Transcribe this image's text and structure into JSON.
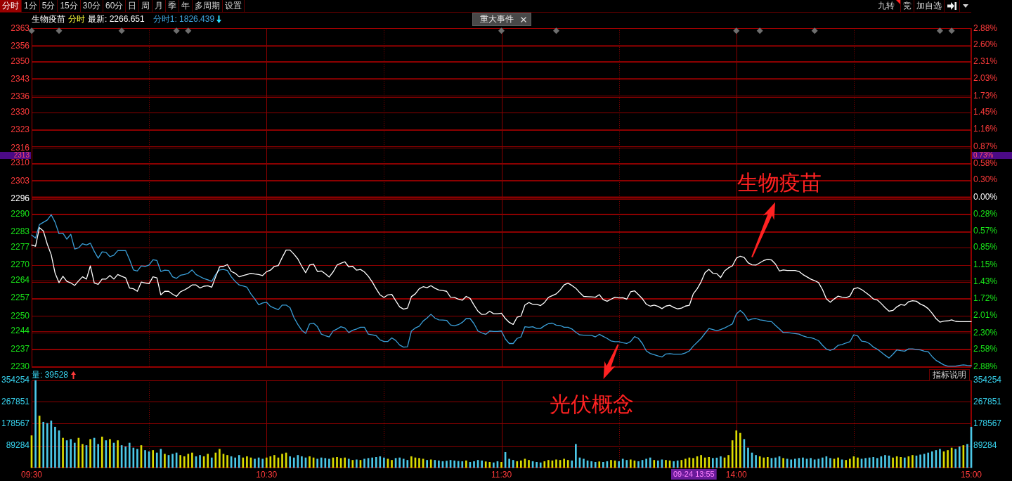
{
  "chart_data": [
    {
      "type": "other",
      "annotations": [
        "分时",
        "1分",
        "5分",
        "15分",
        "30分",
        "60分",
        "日",
        "周",
        "月",
        "季",
        "年",
        "多周期",
        "设置"
      ]
    },
    {
      "type": "other",
      "annotations": [
        "九转",
        "竞",
        "加自选"
      ]
    },
    {
      "type": "line",
      "annotations": [
        "生物疫苗",
        "分时",
        "最新: 2266.651",
        "分时1: 1826.439",
        "重大事件",
        "2313",
        "0.73%"
      ],
      "categories": [
        null,
        null,
        null,
        null,
        null,
        null,
        null,
        null,
        null,
        null,
        null,
        null,
        null,
        null,
        null,
        null,
        null,
        null,
        null,
        null,
        null,
        null,
        null,
        null,
        null,
        null,
        null,
        null,
        null,
        null,
        null,
        null,
        null,
        null,
        null,
        null,
        null,
        null,
        null,
        null,
        null,
        null,
        null,
        null,
        null,
        null,
        null,
        null,
        null,
        null,
        null,
        null,
        null,
        null,
        null,
        null,
        null,
        null,
        null,
        null,
        null,
        null,
        null,
        null,
        null,
        null,
        null,
        null,
        null,
        null,
        null,
        null,
        null,
        null,
        null,
        null,
        null,
        null,
        null,
        null,
        null,
        null,
        null,
        null,
        null,
        null,
        null,
        null,
        null,
        null,
        null,
        null,
        null,
        null,
        null,
        null,
        null,
        null,
        null,
        null,
        null,
        null,
        null,
        null,
        null,
        null,
        null,
        null,
        null,
        null,
        null,
        null,
        null,
        null,
        null,
        null,
        null,
        null,
        null,
        null,
        null,
        null,
        null,
        null,
        null,
        null,
        null,
        null,
        null,
        null,
        null,
        null,
        null,
        null,
        null,
        null,
        null,
        null,
        null,
        null,
        null,
        null,
        null,
        null,
        null,
        null,
        null,
        null,
        null,
        null,
        null,
        null,
        null,
        null,
        null,
        null,
        null,
        null,
        null,
        null,
        null,
        null,
        null,
        null,
        null,
        null,
        null,
        null,
        null,
        null,
        null,
        null,
        null,
        null,
        null,
        null,
        null,
        null,
        null,
        null,
        null,
        null,
        null,
        null,
        null,
        null,
        null,
        null,
        null,
        null,
        null,
        null,
        null,
        null,
        null,
        null,
        null,
        null,
        null,
        null,
        null,
        null,
        null,
        null,
        null,
        null,
        null,
        null,
        null,
        null,
        null,
        null,
        null,
        null,
        null,
        null,
        null,
        null,
        null,
        null,
        null,
        null,
        null,
        null,
        null,
        null,
        null,
        null,
        null,
        null,
        null,
        null,
        null,
        null,
        null,
        null,
        null,
        null,
        null,
        null,
        null
      ],
      "ylim": [
        2230,
        2363
      ],
      "yticks": [
        2230,
        2237,
        2244,
        2250,
        2257,
        2264,
        2270,
        2277,
        2283,
        2290,
        2296,
        2303,
        2310,
        2316,
        2323,
        2330,
        2336,
        2343,
        2350,
        2356,
        2363
      ],
      "y2lim": [
        -2.88,
        2.88
      ],
      "y2ticks": [
        {
          "value": -2.88,
          "label": "2.88%"
        },
        {
          "value": -2.58,
          "label": "2.58%"
        },
        {
          "value": -2.3,
          "label": "2.30%"
        },
        {
          "value": -2.01,
          "label": "2.01%"
        },
        {
          "value": -1.72,
          "label": "1.72%"
        },
        {
          "value": -1.43,
          "label": "1.43%"
        },
        {
          "value": -1.15,
          "label": "1.15%"
        },
        {
          "value": -0.85,
          "label": "0.85%"
        },
        {
          "value": -0.57,
          "label": "0.57%"
        },
        {
          "value": -0.28,
          "label": "0.28%"
        },
        {
          "value": 0,
          "label": "0.00%"
        },
        {
          "value": 0.3,
          "label": "0.30%"
        },
        {
          "value": 0.58,
          "label": "0.58%"
        },
        {
          "value": 0.87,
          "label": "0.87%"
        },
        {
          "value": 1.16,
          "label": "1.16%"
        },
        {
          "value": 1.45,
          "label": "1.45%"
        },
        {
          "value": 1.73,
          "label": "1.73%"
        },
        {
          "value": 2.03,
          "label": "2.03%"
        },
        {
          "value": 2.31,
          "label": "2.31%"
        },
        {
          "value": 2.6,
          "label": "2.60%"
        },
        {
          "value": 2.88,
          "label": "2.88%"
        }
      ],
      "grid": true,
      "ref_lines": [
        {
          "axis": "y2",
          "value": 0,
          "color": "#8b0000"
        }
      ],
      "series": [
        {
          "name": "生物疫苗",
          "color": "#ffffff",
          "values": [
            2277.9,
            2277.4,
            2284.7,
            2283.4,
            2278.2,
            2274.1,
            2266.8,
            2263.1,
            2265.6,
            2263.6,
            2263.0,
            2262.0,
            2263.8,
            2265.4,
            2264.5,
            2269.7,
            2263.0,
            2262.4,
            2264.5,
            2264.5,
            2265.9,
            2264.5,
            2266.3,
            2265.6,
            2265.0,
            2261.0,
            2260.7,
            2259.7,
            2263.3,
            2263.0,
            2262.7,
            2265.4,
            2265.0,
            2258.3,
            2259.7,
            2259.7,
            2258.6,
            2257.7,
            2259.5,
            2260.2,
            2261.1,
            2262.2,
            2262.2,
            2261.0,
            2261.7,
            2261.9,
            2261.3,
            2265.4,
            2269.3,
            2269.5,
            2270.2,
            2267.5,
            2266.8,
            2265.4,
            2265.9,
            2266.3,
            2266.8,
            2266.5,
            2266.3,
            2265.9,
            2267.4,
            2268.0,
            2269.5,
            2269.8,
            2273.0,
            2275.9,
            2275.9,
            2274.3,
            2272.4,
            2269.5,
            2267.0,
            2270.0,
            2270.4,
            2267.5,
            2267.7,
            2266.6,
            2265.3,
            2267.3,
            2270.0,
            2270.7,
            2271.3,
            2269.3,
            2269.5,
            2268.0,
            2268.3,
            2267.3,
            2265.6,
            2263.4,
            2260.7,
            2258.3,
            2257.3,
            2258.3,
            2258.5,
            2256.0,
            2253.6,
            2252.7,
            2253.1,
            2257.6,
            2258.7,
            2260.7,
            2261.5,
            2261.1,
            2261.9,
            2260.9,
            2260.2,
            2260.0,
            2259.7,
            2257.4,
            2257.3,
            2256.6,
            2256.2,
            2257.7,
            2256.9,
            2254.3,
            2251.9,
            2250.6,
            2250.7,
            2251.9,
            2250.9,
            2250.9,
            2251.1,
            2249.0,
            2247.5,
            2246.7,
            2249.5,
            2250.0,
            2254.3,
            2255.3,
            2254.6,
            2254.6,
            2254.1,
            2255.3,
            2257.3,
            2258.0,
            2258.7,
            2260.2,
            2262.2,
            2262.9,
            2262.0,
            2260.9,
            2259.2,
            2257.7,
            2257.6,
            2257.5,
            2257.4,
            2258.4,
            2256.4,
            2255.8,
            2256.6,
            2257.4,
            2257.1,
            2257.2,
            2256.6,
            2259.5,
            2259.9,
            2258.4,
            2256.8,
            2254.6,
            2253.9,
            2254.3,
            2253.8,
            2252.9,
            2253.9,
            2254.2,
            2253.4,
            2252.8,
            2253.1,
            2253.9,
            2254.2,
            2258.7,
            2260.7,
            2263.4,
            2267.0,
            2268.3,
            2266.8,
            2266.651,
            2265.1,
            2267.7,
            2268.9,
            2269.7,
            2272.7,
            2273.5,
            2273.0,
            2270.9,
            2270.1,
            2270.0,
            2270.9,
            2271.8,
            2272.2,
            2272.0,
            2270.4,
            2267.7,
            2268.1,
            2267.9,
            2267.9,
            2267.9,
            2267.5,
            2266.3,
            2265.4,
            2264.5,
            2263.9,
            2263.1,
            2260.4,
            2256.7,
            2255.4,
            2256.7,
            2257.8,
            2257.4,
            2257.2,
            2257.8,
            2260.7,
            2261.1,
            2260.4,
            2259.3,
            2258.1,
            2256.7,
            2256.3,
            2254.9,
            2253.3,
            2251.9,
            2252.2,
            2253.6,
            2254.5,
            2254.2,
            2255.6,
            2256.0,
            2255.8,
            2254.7,
            2254.0,
            2252.9,
            2251.1,
            2249.0,
            2247.6,
            2248.0,
            2248.1,
            2248.5,
            2247.9,
            2247.8,
            2247.8,
            2247.8,
            2247.8
          ]
        },
        {
          "name": "光伏概念",
          "color": "#3a9fd8",
          "values": [
            2281.8,
            2280.6,
            2285.9,
            2286.8,
            2287.7,
            2289.8,
            2286.8,
            2282.3,
            2282.5,
            2280.2,
            2282.1,
            2276.3,
            2276.8,
            2278.4,
            2277.9,
            2278.6,
            2275.4,
            2272.7,
            2275.2,
            2275.0,
            2273.3,
            2273.9,
            2275.7,
            2275.7,
            2275.7,
            2272.2,
            2268.1,
            2267.7,
            2269.7,
            2269.5,
            2270.0,
            2272.1,
            2271.8,
            2267.5,
            2268.0,
            2267.9,
            2265.4,
            2264.8,
            2266.0,
            2266.3,
            2266.8,
            2268.1,
            2266.3,
            2265.5,
            2264.7,
            2264.2,
            2263.6,
            2266.3,
            2268.1,
            2268.3,
            2267.9,
            2265.4,
            2263.6,
            2262.2,
            2261.8,
            2261.3,
            2258.7,
            2256.7,
            2254.4,
            2255.1,
            2255.4,
            2253.8,
            2253.1,
            2252.5,
            2254.3,
            2254.3,
            2253.3,
            2249.4,
            2246.7,
            2244.4,
            2243.2,
            2246.9,
            2247.2,
            2245.8,
            2242.9,
            2242.3,
            2241.8,
            2244.1,
            2244.9,
            2245.8,
            2245.3,
            2243.5,
            2244.4,
            2244.9,
            2245.6,
            2245.6,
            2242.9,
            2242.6,
            2242.3,
            2240.6,
            2240.0,
            2240.0,
            2241.4,
            2240.4,
            2238.6,
            2237.8,
            2237.9,
            2244.1,
            2245.3,
            2246.0,
            2248.0,
            2249.2,
            2250.7,
            2249.2,
            2248.5,
            2248.4,
            2248.3,
            2246.5,
            2246.2,
            2246.6,
            2247.5,
            2249.0,
            2249.0,
            2247.0,
            2244.1,
            2243.4,
            2242.8,
            2244.1,
            2243.9,
            2243.9,
            2244.1,
            2241.0,
            2239.2,
            2239.2,
            2241.2,
            2241.8,
            2245.8,
            2245.6,
            2245.8,
            2245.1,
            2245.1,
            2246.2,
            2247.0,
            2247.2,
            2246.4,
            2246.3,
            2245.6,
            2245.6,
            2244.9,
            2243.6,
            2242.6,
            2242.5,
            2242.4,
            2242.4,
            2241.8,
            2242.8,
            2242.0,
            2241.2,
            2240.2,
            2239.9,
            2239.9,
            2239.5,
            2239.2,
            2240.0,
            2241.9,
            2241.2,
            2239.2,
            2236.3,
            2235.3,
            2234.8,
            2234.3,
            2233.9,
            2235.1,
            2235.2,
            2235.0,
            2235.0,
            2235.0,
            2235.5,
            2236.3,
            2238.2,
            2239.7,
            2241.2,
            2243.2,
            2245.1,
            2244.7,
            2244.2,
            2244.7,
            2245.3,
            2246.1,
            2246.9,
            2250.8,
            2252.2,
            2250.8,
            2248.3,
            2248.8,
            2249.0,
            2248.5,
            2248.3,
            2247.9,
            2247.8,
            2246.3,
            2244.9,
            2243.5,
            2243.5,
            2243.3,
            2243.1,
            2242.9,
            2242.2,
            2241.7,
            2241.5,
            2241.0,
            2240.3,
            2238.5,
            2237.0,
            2236.5,
            2237.1,
            2238.5,
            2238.8,
            2239.4,
            2239.9,
            2242.6,
            2242.2,
            2240.1,
            2239.9,
            2239.2,
            2237.8,
            2237.0,
            2235.8,
            2234.6,
            2233.5,
            2235.0,
            2236.7,
            2236.4,
            2236.2,
            2237.1,
            2237.1,
            2236.9,
            2236.7,
            2236.2,
            2236.0,
            2234.1,
            2232.6,
            2231.7,
            2230.8,
            2230.3,
            2230.3,
            2230.3,
            2230.6,
            2230.8,
            2230.6,
            2230.5
          ]
        },
        {
          "type": "scatter",
          "marker": "diamond",
          "color": "#6e6e6e",
          "values": [
            2362,
            null,
            null,
            null,
            null,
            null,
            null,
            2362,
            null,
            null,
            null,
            null,
            null,
            null,
            null,
            null,
            null,
            null,
            null,
            null,
            null,
            null,
            null,
            2362,
            null,
            null,
            null,
            null,
            null,
            null,
            null,
            null,
            null,
            null,
            null,
            null,
            null,
            2362,
            null,
            null,
            2362,
            null,
            null,
            null,
            null,
            null,
            null,
            null,
            null,
            null,
            null,
            null,
            null,
            null,
            null,
            null,
            null,
            null,
            null,
            null,
            null,
            null,
            null,
            null,
            null,
            null,
            null,
            null,
            null,
            null,
            null,
            null,
            null,
            null,
            null,
            null,
            null,
            null,
            null,
            null,
            null,
            null,
            null,
            null,
            null,
            null,
            null,
            null,
            null,
            null,
            null,
            null,
            null,
            null,
            null,
            null,
            null,
            null,
            null,
            null,
            null,
            null,
            null,
            null,
            null,
            null,
            null,
            null,
            null,
            null,
            null,
            null,
            null,
            null,
            null,
            null,
            null,
            null,
            null,
            null,
            2362,
            null,
            null,
            null,
            null,
            null,
            null,
            null,
            null,
            null,
            null,
            null,
            null,
            null,
            2362,
            null,
            null,
            null,
            null,
            null,
            null,
            null,
            null,
            null,
            null,
            null,
            null,
            null,
            null,
            null,
            null,
            null,
            null,
            null,
            null,
            null,
            null,
            null,
            null,
            null,
            null,
            null,
            null,
            null,
            null,
            null,
            null,
            null,
            null,
            null,
            null,
            null,
            null,
            null,
            null,
            null,
            null,
            null,
            null,
            null,
            2362,
            null,
            null,
            null,
            null,
            null,
            2362,
            null,
            null,
            null,
            null,
            null,
            null,
            null,
            null,
            null,
            null,
            null,
            null,
            null,
            2362,
            null,
            null,
            null,
            null,
            null,
            null,
            null,
            null,
            null,
            null,
            null,
            null,
            null,
            null,
            null,
            null,
            null,
            null,
            null,
            null,
            null,
            null,
            null,
            null,
            null,
            null,
            null,
            null,
            null,
            null,
            null,
            2362,
            null,
            null,
            2362,
            null,
            null,
            null,
            null,
            null
          ]
        }
      ]
    },
    {
      "type": "bar",
      "annotations": [
        "量: 39528",
        "指标说明",
        "09-24 13:55"
      ],
      "categories": [
        "09:30",
        null,
        null,
        null,
        null,
        null,
        null,
        null,
        null,
        null,
        null,
        null,
        null,
        null,
        null,
        null,
        null,
        null,
        null,
        null,
        null,
        null,
        null,
        null,
        null,
        null,
        null,
        null,
        null,
        null,
        null,
        null,
        null,
        null,
        null,
        null,
        null,
        null,
        null,
        null,
        null,
        null,
        null,
        null,
        null,
        null,
        null,
        null,
        null,
        null,
        null,
        null,
        null,
        null,
        null,
        null,
        null,
        null,
        null,
        null,
        "10:30",
        null,
        null,
        null,
        null,
        null,
        null,
        null,
        null,
        null,
        null,
        null,
        null,
        null,
        null,
        null,
        null,
        null,
        null,
        null,
        null,
        null,
        null,
        null,
        null,
        null,
        null,
        null,
        null,
        null,
        null,
        null,
        null,
        null,
        null,
        null,
        null,
        null,
        null,
        null,
        null,
        null,
        null,
        null,
        null,
        null,
        null,
        null,
        null,
        null,
        null,
        null,
        null,
        null,
        null,
        null,
        null,
        null,
        null,
        null,
        "11:30",
        null,
        null,
        null,
        null,
        null,
        null,
        null,
        null,
        null,
        null,
        null,
        null,
        null,
        null,
        null,
        null,
        null,
        null,
        null,
        null,
        null,
        null,
        null,
        null,
        null,
        null,
        null,
        null,
        null,
        null,
        null,
        null,
        null,
        null,
        null,
        null,
        null,
        null,
        null,
        null,
        null,
        null,
        null,
        null,
        null,
        null,
        null,
        null,
        null,
        null,
        null,
        null,
        null,
        null,
        null,
        null,
        null,
        null,
        null,
        "14:00",
        null,
        null,
        null,
        null,
        null,
        null,
        null,
        null,
        null,
        null,
        null,
        null,
        null,
        null,
        null,
        null,
        null,
        null,
        null,
        null,
        null,
        null,
        null,
        null,
        null,
        null,
        null,
        null,
        null,
        null,
        null,
        null,
        null,
        null,
        null,
        null,
        null,
        null,
        null,
        null,
        null,
        null,
        null,
        null,
        null,
        null,
        null,
        null,
        null,
        null,
        null,
        null,
        null,
        null,
        null,
        null,
        null,
        null,
        null,
        "15:00"
      ],
      "ylim": [
        0,
        354254
      ],
      "yticks": [
        89284,
        178567,
        267851,
        354254
      ],
      "y2lim": [
        0,
        354254
      ],
      "y2ticks": [
        89284,
        178567,
        267851,
        354254
      ],
      "grid": true,
      "values": [
        130000,
        354254,
        210000,
        185000,
        180000,
        190000,
        165000,
        150000,
        120000,
        110000,
        115000,
        100000,
        120000,
        95000,
        90000,
        115000,
        120000,
        95000,
        125000,
        110000,
        115000,
        100000,
        110000,
        90000,
        85000,
        100000,
        80000,
        75000,
        90000,
        70000,
        65000,
        70000,
        60000,
        75000,
        55000,
        50000,
        55000,
        60000,
        50000,
        45000,
        55000,
        60000,
        45000,
        50000,
        45000,
        55000,
        40000,
        60000,
        75000,
        55000,
        50000,
        45000,
        40000,
        50000,
        40000,
        45000,
        40000,
        35000,
        40000,
        35000,
        40000,
        45000,
        50000,
        40000,
        55000,
        60000,
        45000,
        40000,
        50000,
        45000,
        40000,
        45000,
        40000,
        35000,
        40000,
        38000,
        35000,
        40000,
        42000,
        38000,
        40000,
        35000,
        30000,
        32000,
        30000,
        35000,
        38000,
        40000,
        42000,
        45000,
        40000,
        35000,
        30000,
        38000,
        40000,
        35000,
        30000,
        45000,
        40000,
        38000,
        35000,
        30000,
        32000,
        30000,
        28000,
        25000,
        27000,
        30000,
        28000,
        26000,
        25000,
        28000,
        22000,
        25000,
        30000,
        28000,
        24000,
        22000,
        20000,
        25000,
        22000,
        62000,
        35000,
        30000,
        25000,
        28000,
        35000,
        30000,
        25000,
        22000,
        20000,
        25000,
        30000,
        28000,
        32000,
        30000,
        35000,
        30000,
        28000,
        95000,
        40000,
        35000,
        28000,
        25000,
        22000,
        24000,
        22000,
        25000,
        30000,
        28000,
        25000,
        35000,
        30000,
        32000,
        28000,
        25000,
        30000,
        35000,
        40000,
        30000,
        28000,
        32000,
        30000,
        28000,
        25000,
        28000,
        30000,
        35000,
        40000,
        38000,
        45000,
        50000,
        40000,
        42000,
        38000,
        39528,
        45000,
        40000,
        50000,
        110000,
        150000,
        140000,
        115000,
        80000,
        60000,
        50000,
        45000,
        40000,
        42000,
        38000,
        40000,
        45000,
        38000,
        35000,
        32000,
        35000,
        38000,
        40000,
        35000,
        38000,
        32000,
        35000,
        40000,
        45000,
        38000,
        35000,
        40000,
        32000,
        30000,
        35000,
        45000,
        40000,
        35000,
        38000,
        40000,
        42000,
        38000,
        45000,
        50000,
        48000,
        40000,
        45000,
        42000,
        40000,
        45000,
        50000,
        48000,
        52000,
        55000,
        60000,
        65000,
        70000,
        75000,
        65000,
        70000,
        80000,
        75000,
        85000,
        90000,
        95000,
        165000
      ],
      "colors": [
        "#dcdc00",
        "#4cc8e8",
        "#dcdc00",
        "#4cc8e8",
        "#4cc8e8",
        "#4cc8e8",
        "#4cc8e8",
        "#4cc8e8",
        "#dcdc00",
        "#4cc8e8",
        "#4cc8e8",
        "#4cc8e8",
        "#dcdc00",
        "#dcdc00",
        "#4cc8e8",
        "#dcdc00",
        "#4cc8e8",
        "#4cc8e8",
        "#dcdc00",
        "#4cc8e8",
        "#dcdc00",
        "#4cc8e8",
        "#dcdc00",
        "#4cc8e8",
        "#4cc8e8",
        "#4cc8e8",
        "#4cc8e8",
        "#4cc8e8",
        "#dcdc00",
        "#4cc8e8",
        "#4cc8e8",
        "#dcdc00",
        "#4cc8e8",
        "#4cc8e8",
        "#dcdc00",
        "#4cc8e8",
        "#4cc8e8",
        "#4cc8e8",
        "#dcdc00",
        "#dcdc00",
        "#dcdc00",
        "#dcdc00",
        "#4cc8e8",
        "#4cc8e8",
        "#dcdc00",
        "#dcdc00",
        "#4cc8e8",
        "#dcdc00",
        "#dcdc00",
        "#dcdc00",
        "#dcdc00",
        "#4cc8e8",
        "#4cc8e8",
        "#4cc8e8",
        "#dcdc00",
        "#dcdc00",
        "#dcdc00",
        "#4cc8e8",
        "#4cc8e8",
        "#4cc8e8",
        "#dcdc00",
        "#dcdc00",
        "#dcdc00",
        "#dcdc00",
        "#dcdc00",
        "#dcdc00",
        "#4cc8e8",
        "#4cc8e8",
        "#4cc8e8",
        "#4cc8e8",
        "#4cc8e8",
        "#dcdc00",
        "#dcdc00",
        "#4cc8e8",
        "#4cc8e8",
        "#4cc8e8",
        "#4cc8e8",
        "#dcdc00",
        "#dcdc00",
        "#dcdc00",
        "#dcdc00",
        "#4cc8e8",
        "#dcdc00",
        "#4cc8e8",
        "#dcdc00",
        "#4cc8e8",
        "#4cc8e8",
        "#4cc8e8",
        "#4cc8e8",
        "#4cc8e8",
        "#4cc8e8",
        "#dcdc00",
        "#dcdc00",
        "#4cc8e8",
        "#4cc8e8",
        "#4cc8e8",
        "#4cc8e8",
        "#dcdc00",
        "#dcdc00",
        "#dcdc00",
        "#dcdc00",
        "#4cc8e8",
        "#dcdc00",
        "#4cc8e8",
        "#4cc8e8",
        "#4cc8e8",
        "#4cc8e8",
        "#4cc8e8",
        "#4cc8e8",
        "#4cc8e8",
        "#4cc8e8",
        "#dcdc00",
        "#4cc8e8",
        "#4cc8e8",
        "#4cc8e8",
        "#4cc8e8",
        "#dcdc00",
        "#dcdc00",
        "#4cc8e8",
        "#4cc8e8",
        "#dcdc00",
        "#4cc8e8",
        "#4cc8e8",
        "#4cc8e8",
        "#dcdc00",
        "#dcdc00",
        "#dcdc00",
        "#dcdc00",
        "#4cc8e8",
        "#4cc8e8",
        "#4cc8e8",
        "#dcdc00",
        "#dcdc00",
        "#dcdc00",
        "#dcdc00",
        "#dcdc00",
        "#dcdc00",
        "#dcdc00",
        "#4cc8e8",
        "#4cc8e8",
        "#4cc8e8",
        "#4cc8e8",
        "#4cc8e8",
        "#4cc8e8",
        "#4cc8e8",
        "#dcdc00",
        "#4cc8e8",
        "#4cc8e8",
        "#dcdc00",
        "#dcdc00",
        "#4cc8e8",
        "#4cc8e8",
        "#4cc8e8",
        "#dcdc00",
        "#dcdc00",
        "#4cc8e8",
        "#4cc8e8",
        "#4cc8e8",
        "#4cc8e8",
        "#dcdc00",
        "#4cc8e8",
        "#4cc8e8",
        "#dcdc00",
        "#dcdc00",
        "#4cc8e8",
        "#4cc8e8",
        "#dcdc00",
        "#dcdc00",
        "#dcdc00",
        "#dcdc00",
        "#dcdc00",
        "#dcdc00",
        "#dcdc00",
        "#dcdc00",
        "#4cc8e8",
        "#4cc8e8",
        "#4cc8e8",
        "#dcdc00",
        "#dcdc00",
        "#dcdc00",
        "#dcdc00",
        "#dcdc00",
        "#4cc8e8",
        "#4cc8e8",
        "#4cc8e8",
        "#4cc8e8",
        "#dcdc00",
        "#dcdc00",
        "#dcdc00",
        "#4cc8e8",
        "#4cc8e8",
        "#4cc8e8",
        "#dcdc00",
        "#4cc8e8",
        "#4cc8e8",
        "#4cc8e8",
        "#4cc8e8",
        "#4cc8e8",
        "#4cc8e8",
        "#4cc8e8",
        "#4cc8e8",
        "#4cc8e8",
        "#4cc8e8",
        "#4cc8e8",
        "#4cc8e8",
        "#dcdc00",
        "#dcdc00",
        "#4cc8e8",
        "#dcdc00",
        "#dcdc00",
        "#dcdc00",
        "#dcdc00",
        "#4cc8e8",
        "#4cc8e8",
        "#4cc8e8",
        "#4cc8e8",
        "#4cc8e8",
        "#4cc8e8",
        "#4cc8e8",
        "#4cc8e8",
        "#dcdc00",
        "#dcdc00",
        "#dcdc00",
        "#4cc8e8",
        "#dcdc00",
        "#dcdc00",
        "#4cc8e8",
        "#4cc8e8",
        "#4cc8e8",
        "#4cc8e8",
        "#4cc8e8",
        "#4cc8e8",
        "#4cc8e8",
        "#dcdc00",
        "#dcdc00",
        "#dcdc00",
        "#4cc8e8",
        "#4cc8e8",
        "#dcdc00",
        "#4cc8e8",
        "#4cc8e8"
      ]
    }
  ]
}
